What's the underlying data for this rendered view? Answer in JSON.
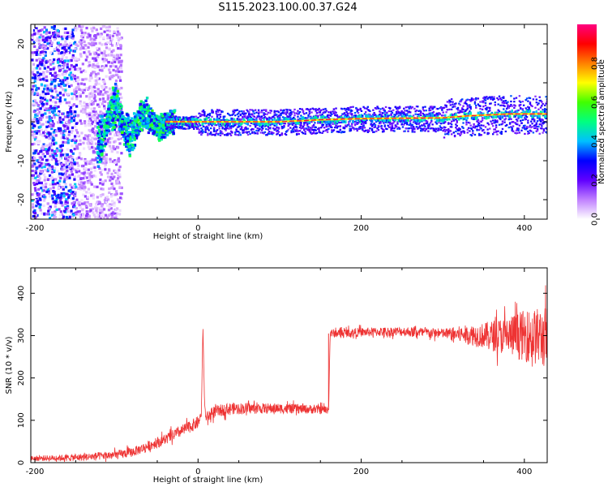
{
  "title": "S115.2023.100.00.37.G24",
  "chart_data": [
    {
      "type": "heatmap",
      "title": "S115.2023.100.00.37.G24",
      "xlabel": "Height of straight line (km)",
      "ylabel": "Frequency (Hz)",
      "xlim": [
        -205,
        428
      ],
      "ylim": [
        -25,
        25
      ],
      "xticks": [
        -200,
        0,
        200,
        400
      ],
      "yticks": [
        -20,
        -10,
        0,
        10,
        20
      ],
      "colorbar": {
        "label": "Normalized spectral amplitude",
        "range": [
          0,
          1
        ],
        "ticks": [
          "0.0",
          "0.2",
          "0.4",
          "0.6",
          "0.8"
        ],
        "colormap": [
          "#ffffff",
          "#c080ff",
          "#6000ff",
          "#0000ff",
          "#00c0ff",
          "#00ff80",
          "#40ff00",
          "#ffff00",
          "#ff8000",
          "#ff0000",
          "#ff0080"
        ]
      },
      "ridge": {
        "description_points_x": [
          -40,
          0,
          50,
          100,
          150,
          200,
          250,
          300,
          330,
          380,
          428
        ],
        "description_points_y": [
          0,
          0,
          0,
          0,
          0.5,
          0.8,
          0.9,
          1,
          1.5,
          2,
          2
        ]
      }
    },
    {
      "type": "line",
      "xlabel": "Height of straight line (km)",
      "ylabel": "SNR (10 * v/v)",
      "xlim": [
        -205,
        428
      ],
      "ylim": [
        0,
        460
      ],
      "xticks": [
        -200,
        0,
        200,
        400
      ],
      "yticks": [
        0,
        100,
        200,
        300,
        400
      ],
      "color": "#ee3333",
      "segments": [
        {
          "x": [
            -205,
            -150,
            -100,
            -80,
            -60,
            -40,
            -20,
            0,
            4,
            6,
            8,
            10,
            20,
            40,
            60,
            100,
            160
          ],
          "y": [
            10,
            12,
            18,
            25,
            40,
            55,
            75,
            95,
            110,
            320,
            140,
            105,
            120,
            128,
            128,
            128,
            125
          ]
        },
        {
          "x": [
            160,
            162,
            200,
            250,
            300,
            350,
            380,
            400,
            428
          ],
          "y": [
            125,
            305,
            308,
            310,
            305,
            300,
            300,
            300,
            295
          ]
        }
      ],
      "noise_amplitude": {
        "x": [
          -205,
          -60,
          0,
          160,
          300,
          350,
          400,
          428
        ],
        "amp": [
          6,
          12,
          15,
          10,
          12,
          30,
          60,
          75
        ]
      }
    }
  ]
}
